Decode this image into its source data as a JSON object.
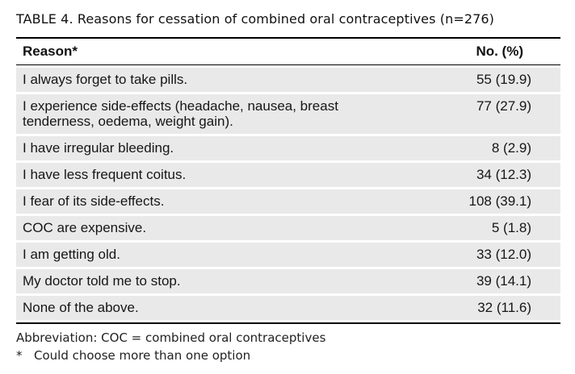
{
  "caption": {
    "label": "TABLE 4.",
    "text": "Reasons for cessation of combined oral contraceptives (n=276)"
  },
  "table": {
    "headers": {
      "reason": "Reason*",
      "count": "No. (%)"
    },
    "rows": [
      {
        "reason": "I always forget to take pills.",
        "count": "55 (19.9)"
      },
      {
        "reason": "I experience side-effects (headache, nausea, breast tenderness, oedema, weight gain).",
        "count": "77 (27.9)"
      },
      {
        "reason": "I have irregular bleeding.",
        "count": "8 (2.9)"
      },
      {
        "reason": "I have less frequent coitus.",
        "count": "34 (12.3)"
      },
      {
        "reason": "I fear of its side-effects.",
        "count": "108 (39.1)"
      },
      {
        "reason": "COC are expensive.",
        "count": "5 (1.8)"
      },
      {
        "reason": "I am getting old.",
        "count": "33 (12.0)"
      },
      {
        "reason": "My doctor told me to stop.",
        "count": "39 (14.1)"
      },
      {
        "reason": "None of the above.",
        "count": "32 (11.6)"
      }
    ]
  },
  "footnotes": {
    "abbreviation": "Abbreviation: COC = combined oral contraceptives",
    "star_marker": "*",
    "star_text": "Could choose more than one option"
  }
}
